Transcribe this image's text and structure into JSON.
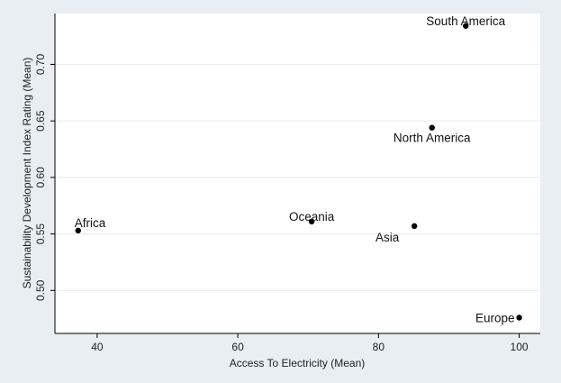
{
  "chart_data": {
    "type": "scatter",
    "xlabel": "Access To Electricity (Mean)",
    "ylabel": "Sustainability Development Index Rating (Mean)",
    "xlim": [
      34,
      103
    ],
    "ylim": [
      0.462,
      0.745
    ],
    "xticks": [
      40,
      60,
      80,
      100
    ],
    "yticks": [
      0.5,
      0.55,
      0.6,
      0.65,
      0.7
    ],
    "ytick_labels": [
      "0.50",
      "0.55",
      "0.60",
      "0.65",
      "0.70"
    ],
    "grid": "horizontal",
    "points": [
      {
        "label": "South America",
        "x": 92.4,
        "y": 0.734,
        "label_pos": "center-above"
      },
      {
        "label": "North America",
        "x": 87.6,
        "y": 0.644,
        "label_pos": "center-below"
      },
      {
        "label": "Africa",
        "x": 37.3,
        "y": 0.553,
        "label_pos": "right-above"
      },
      {
        "label": "Oceania",
        "x": 70.5,
        "y": 0.561,
        "label_pos": "center-above"
      },
      {
        "label": "Asia",
        "x": 85.1,
        "y": 0.557,
        "label_pos": "left-below"
      },
      {
        "label": "Europe",
        "x": 100.0,
        "y": 0.476,
        "label_pos": "left"
      }
    ]
  },
  "colors": {
    "background": "#e8eef1",
    "plot_background": "#ffffff",
    "gridline": "#e8eef1",
    "marker": "#000000",
    "axis": "#000000"
  }
}
